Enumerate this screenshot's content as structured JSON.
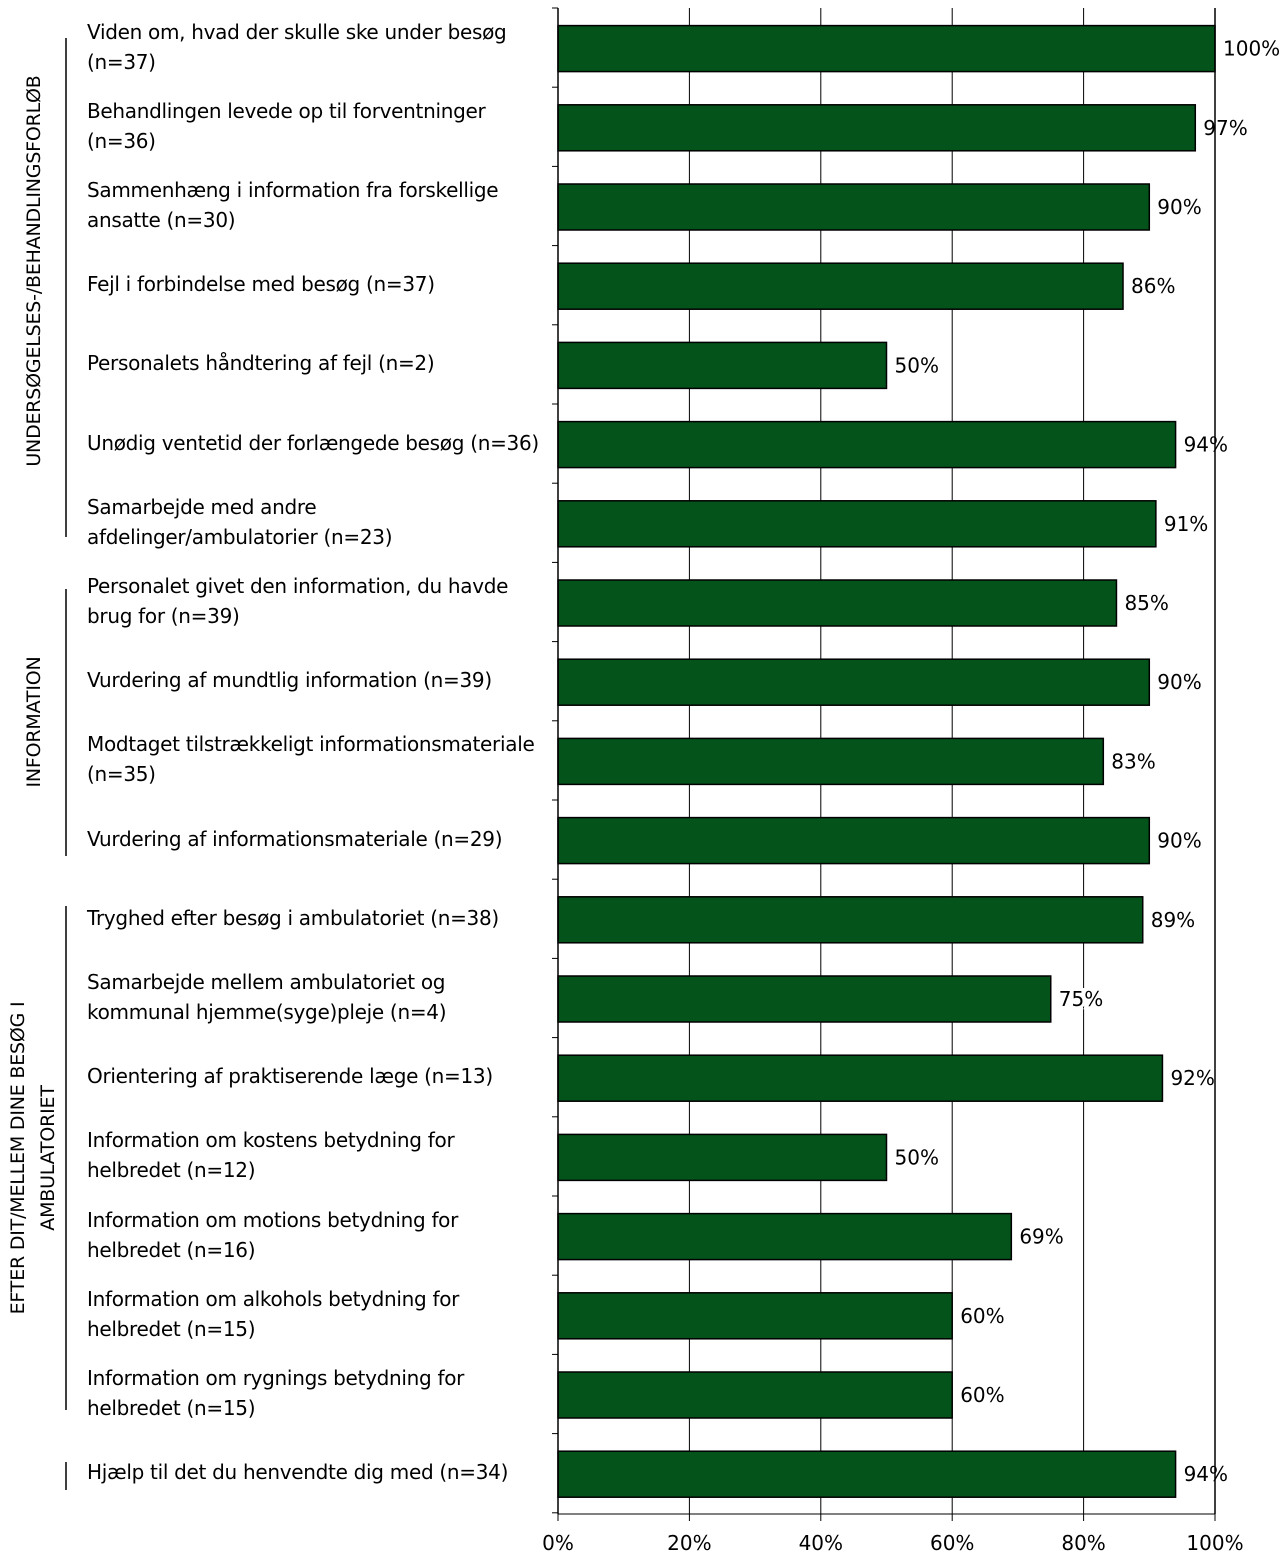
{
  "chart_data": {
    "type": "bar",
    "orientation": "horizontal",
    "colors": {
      "bar_fill": "#04531a",
      "bar_stroke": "#000000",
      "grid": "#000000"
    },
    "xlim": [
      0,
      100
    ],
    "x_ticks": [
      "0%",
      "20%",
      "40%",
      "60%",
      "80%",
      "100%"
    ],
    "groups": [
      {
        "title": "UNDERSØGELSES-/BEHANDLINGSFORLØB"
      },
      {
        "title": "INFORMATION"
      },
      {
        "title_lines": [
          "EFTER DIT/MELLEM DINE BESØG I",
          "AMBULATORIET"
        ]
      }
    ],
    "categories": [
      {
        "label": "Viden om, hvad der skulle ske under besøg (n=37)",
        "value": 100,
        "value_label": "100%"
      },
      {
        "label": "Behandlingen levede op til forventninger (n=36)",
        "value": 97,
        "value_label": "97%"
      },
      {
        "label": "Sammenhæng i information fra forskellige ansatte (n=30)",
        "value": 90,
        "value_label": "90%"
      },
      {
        "label": "Fejl i forbindelse med besøg (n=37)",
        "value": 86,
        "value_label": "86%"
      },
      {
        "label": "Personalets håndtering af fejl (n=2)",
        "value": 50,
        "value_label": "50%"
      },
      {
        "label": "Unødig ventetid der forlængede besøg (n=36)",
        "value": 94,
        "value_label": "94%"
      },
      {
        "label": "Samarbejde med andre afdelinger/ambulatorier (n=23)",
        "value": 91,
        "value_label": "91%"
      },
      {
        "label": "Personalet givet den information, du havde brug for (n=39)",
        "value": 85,
        "value_label": "85%"
      },
      {
        "label": "Vurdering af mundtlig information (n=39)",
        "value": 90,
        "value_label": "90%"
      },
      {
        "label": "Modtaget tilstrækkeligt informationsmateriale (n=35)",
        "value": 83,
        "value_label": "83%"
      },
      {
        "label": "Vurdering af informationsmateriale (n=29)",
        "value": 90,
        "value_label": "90%"
      },
      {
        "label": "Tryghed efter besøg i ambulatoriet (n=38)",
        "value": 89,
        "value_label": "89%"
      },
      {
        "label": "Samarbejde mellem ambulatoriet og kommunal hjemme(syge)pleje (n=4)",
        "value": 75,
        "value_label": "75%"
      },
      {
        "label": "Orientering af praktiserende læge (n=13)",
        "value": 92,
        "value_label": "92%"
      },
      {
        "label": "Information om kostens betydning for helbredet (n=12)",
        "value": 50,
        "value_label": "50%"
      },
      {
        "label": "Information om motions betydning for helbredet (n=16)",
        "value": 69,
        "value_label": "69%"
      },
      {
        "label": "Information om alkohols betydning for helbredet (n=15)",
        "value": 60,
        "value_label": "60%"
      },
      {
        "label": "Information om rygnings betydning for helbredet (n=15)",
        "value": 60,
        "value_label": "60%"
      },
      {
        "label": "Hjælp til det du henvendte dig med (n=34)",
        "value": 94,
        "value_label": "94%"
      }
    ]
  }
}
